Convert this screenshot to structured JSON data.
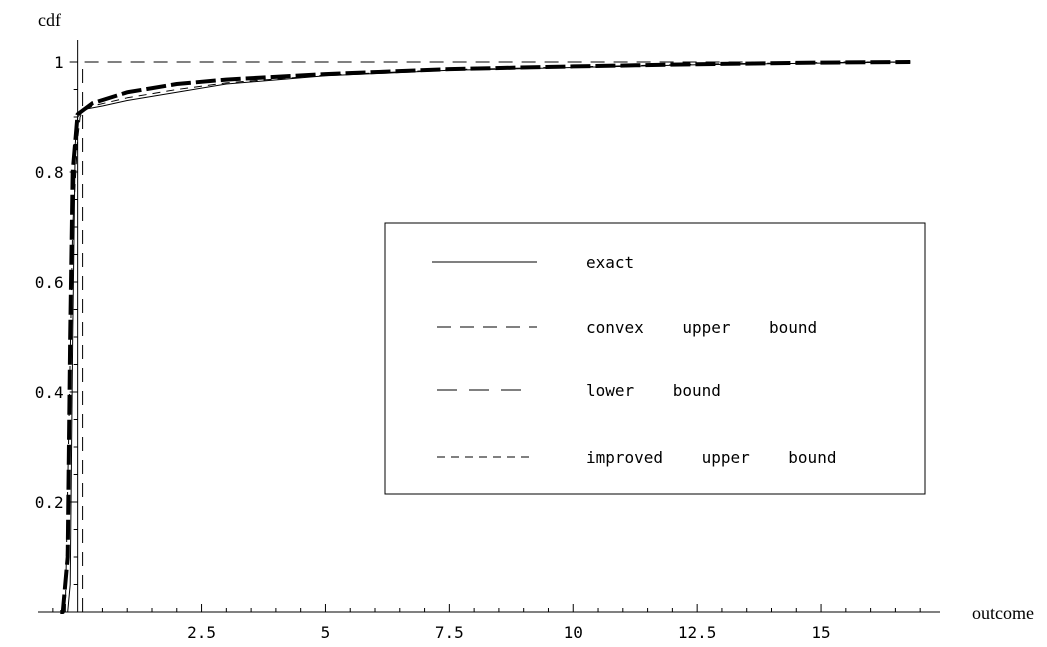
{
  "chart_data": {
    "type": "line",
    "xlabel": "outcome",
    "ylabel": "cdf",
    "xlim": [
      -0.8,
      17.4
    ],
    "ylim": [
      0,
      1.04
    ],
    "grid": false,
    "legend_placement": "center-right",
    "x_ticks": [
      {
        "value": 2.5,
        "label": "2.5"
      },
      {
        "value": 5,
        "label": "5"
      },
      {
        "value": 7.5,
        "label": "7.5"
      },
      {
        "value": 10,
        "label": "10"
      },
      {
        "value": 12.5,
        "label": "12.5"
      },
      {
        "value": 15,
        "label": "15"
      }
    ],
    "y_ticks": [
      {
        "value": 0.2,
        "label": "0.2"
      },
      {
        "value": 0.4,
        "label": "0.4"
      },
      {
        "value": 0.6,
        "label": "0.6"
      },
      {
        "value": 0.8,
        "label": "0.8"
      },
      {
        "value": 1,
        "label": "1"
      }
    ],
    "series": [
      {
        "name": "exact",
        "style": "solid",
        "x": [
          -0.35,
          -0.2,
          -0.15,
          -0.1,
          -0.05,
          0,
          0.05,
          0.1,
          0.2,
          0.5,
          1,
          2,
          3,
          5,
          7.5,
          10,
          12.5,
          15,
          16.8
        ],
        "y": [
          0,
          0,
          0.05,
          0.5,
          0.85,
          0.9,
          0.905,
          0.91,
          0.915,
          0.92,
          0.93,
          0.945,
          0.96,
          0.975,
          0.985,
          0.99,
          0.995,
          0.998,
          1
        ]
      },
      {
        "name": "convex    upper    bound",
        "style": "dash-medium",
        "x": [
          0.1,
          0.1,
          16.8
        ],
        "y": [
          0,
          1,
          1
        ]
      },
      {
        "name": "lower    bound",
        "style": "dash-long-bold",
        "x": [
          -0.35,
          -0.3,
          -0.2,
          -0.15,
          -0.1,
          0,
          0.3,
          1,
          2,
          3,
          5,
          7.5,
          10,
          12.5,
          15,
          16.8
        ],
        "y": [
          0,
          0,
          0.1,
          0.5,
          0.8,
          0.905,
          0.925,
          0.945,
          0.96,
          0.968,
          0.978,
          0.987,
          0.992,
          0.996,
          0.999,
          1
        ]
      },
      {
        "name": "improved    upper    bound",
        "style": "dash-short",
        "x": [
          -0.25,
          -0.1,
          0,
          0.05,
          0.1,
          0.3,
          1,
          2,
          3,
          5,
          7.5,
          10,
          12.5,
          15,
          16.8
        ],
        "y": [
          0,
          0.7,
          0.86,
          0.9,
          0.91,
          0.92,
          0.935,
          0.95,
          0.962,
          0.976,
          0.986,
          0.991,
          0.996,
          0.999,
          1
        ]
      }
    ],
    "legend": [
      {
        "label": "exact",
        "style": "solid"
      },
      {
        "label": "convex    upper    bound",
        "style": "dash-medium"
      },
      {
        "label": "lower    bound",
        "style": "dash-long"
      },
      {
        "label": "improved    upper    bound",
        "style": "dash-short"
      }
    ]
  }
}
